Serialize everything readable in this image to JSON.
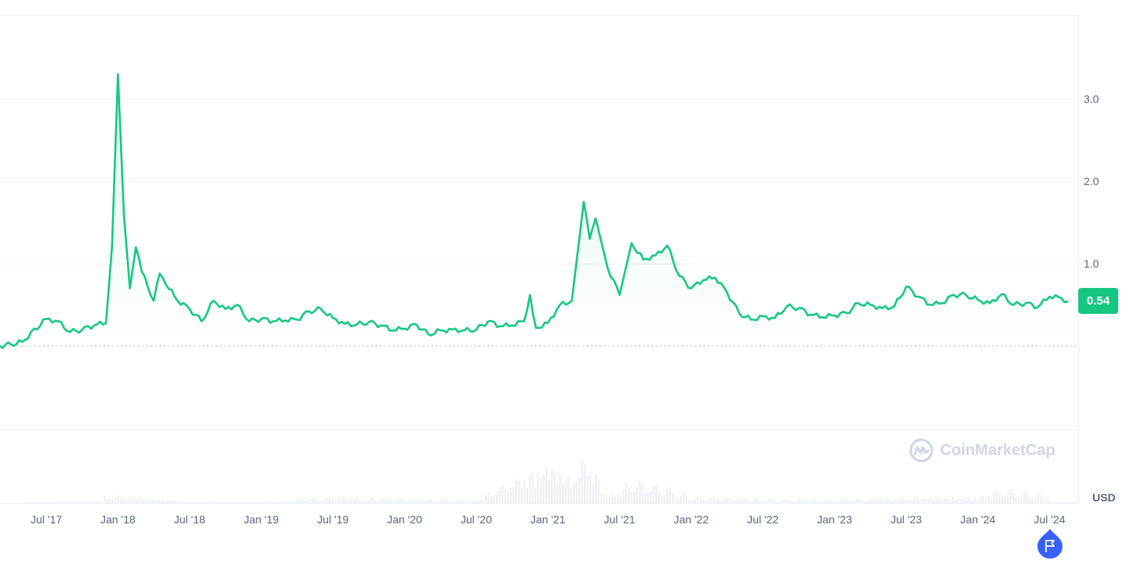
{
  "chart_data": {
    "type": "line",
    "title": "",
    "xlabel": "",
    "ylabel": "USD",
    "currency": "USD",
    "ylim": [
      0,
      4.2
    ],
    "y_ticks": [
      "1.0",
      "2.0",
      "3.0"
    ],
    "y_tick_values": [
      1.0,
      2.0,
      3.0
    ],
    "x_ticks": [
      "Jul '17",
      "Jan '18",
      "Jul '18",
      "Jan '19",
      "Jul '19",
      "Jan '20",
      "Jul '20",
      "Jan '21",
      "Jul '21",
      "Jan '22",
      "Jul '22",
      "Jan '23",
      "Jul '23",
      "Jan '24",
      "Jul '24"
    ],
    "current_price_label": "0.54",
    "baseline_value": 0.0,
    "grid": true,
    "legend": "none",
    "series": [
      {
        "name": "Price",
        "color": "#16c784",
        "points": [
          [
            "Apr '17",
            0.0
          ],
          [
            "May '17",
            0.02
          ],
          [
            "Jun '17",
            0.05
          ],
          [
            "Jul '17",
            0.33
          ],
          [
            "Aug '17",
            0.3
          ],
          [
            "Sep '17",
            0.17
          ],
          [
            "Oct '17",
            0.2
          ],
          [
            "Nov '17",
            0.25
          ],
          [
            "Dec '17",
            0.28
          ],
          [
            "Dec '17 late",
            1.2
          ],
          [
            "Jan '18",
            3.3
          ],
          [
            "Jan '18 late",
            1.6
          ],
          [
            "Feb '18",
            0.7
          ],
          [
            "Feb '18 late",
            1.2
          ],
          [
            "Mar '18",
            0.9
          ],
          [
            "Apr '18",
            0.55
          ],
          [
            "Apr '18 late",
            0.88
          ],
          [
            "May '18",
            0.75
          ],
          [
            "Jun '18",
            0.55
          ],
          [
            "Jul '18",
            0.45
          ],
          [
            "Aug '18",
            0.3
          ],
          [
            "Sep '18",
            0.55
          ],
          [
            "Oct '18",
            0.45
          ],
          [
            "Nov '18",
            0.5
          ],
          [
            "Dec '18",
            0.3
          ],
          [
            "Jan '19",
            0.33
          ],
          [
            "Feb '19",
            0.3
          ],
          [
            "Mar '19",
            0.31
          ],
          [
            "Apr '19",
            0.32
          ],
          [
            "May '19",
            0.42
          ],
          [
            "Jun '19",
            0.45
          ],
          [
            "Jul '19",
            0.34
          ],
          [
            "Aug '19",
            0.27
          ],
          [
            "Sep '19",
            0.26
          ],
          [
            "Oct '19",
            0.29
          ],
          [
            "Nov '19",
            0.25
          ],
          [
            "Dec '19",
            0.19
          ],
          [
            "Jan '20",
            0.21
          ],
          [
            "Feb '20",
            0.26
          ],
          [
            "Mar '20",
            0.14
          ],
          [
            "Apr '20",
            0.19
          ],
          [
            "May '20",
            0.2
          ],
          [
            "Jun '20",
            0.19
          ],
          [
            "Jul '20",
            0.2
          ],
          [
            "Aug '20",
            0.3
          ],
          [
            "Sep '20",
            0.24
          ],
          [
            "Oct '20",
            0.25
          ],
          [
            "Nov '20",
            0.3
          ],
          [
            "Nov '20 late",
            0.62
          ],
          [
            "Dec '20",
            0.22
          ],
          [
            "Jan '21",
            0.28
          ],
          [
            "Feb '21",
            0.5
          ],
          [
            "Mar '21",
            0.55
          ],
          [
            "Apr '21",
            1.75
          ],
          [
            "Apr '21 late",
            1.3
          ],
          [
            "May '21",
            1.55
          ],
          [
            "Jun '21",
            0.95
          ],
          [
            "Jul '21",
            0.62
          ],
          [
            "Aug '21",
            1.25
          ],
          [
            "Sep '21",
            1.05
          ],
          [
            "Oct '21",
            1.1
          ],
          [
            "Nov '21",
            1.22
          ],
          [
            "Dec '21",
            0.85
          ],
          [
            "Jan '22",
            0.7
          ],
          [
            "Feb '22",
            0.8
          ],
          [
            "Mar '22",
            0.83
          ],
          [
            "Apr '22",
            0.65
          ],
          [
            "May '22",
            0.4
          ],
          [
            "Jun '22",
            0.32
          ],
          [
            "Jul '22",
            0.36
          ],
          [
            "Aug '22",
            0.34
          ],
          [
            "Sep '22",
            0.48
          ],
          [
            "Oct '22",
            0.46
          ],
          [
            "Nov '22",
            0.38
          ],
          [
            "Dec '22",
            0.35
          ],
          [
            "Jan '23",
            0.37
          ],
          [
            "Feb '23",
            0.4
          ],
          [
            "Mar '23",
            0.52
          ],
          [
            "Apr '23",
            0.5
          ],
          [
            "May '23",
            0.46
          ],
          [
            "Jun '23",
            0.48
          ],
          [
            "Jul '23",
            0.72
          ],
          [
            "Aug '23",
            0.6
          ],
          [
            "Sep '23",
            0.5
          ],
          [
            "Oct '23",
            0.52
          ],
          [
            "Nov '23",
            0.62
          ],
          [
            "Dec '23",
            0.62
          ],
          [
            "Jan '24",
            0.56
          ],
          [
            "Feb '24",
            0.52
          ],
          [
            "Mar '24",
            0.63
          ],
          [
            "Apr '24",
            0.5
          ],
          [
            "May '24",
            0.52
          ],
          [
            "Jun '24",
            0.47
          ],
          [
            "Jul '24",
            0.6
          ],
          [
            "Aug '24",
            0.58
          ],
          [
            "Aug '24 late",
            0.54
          ]
        ]
      },
      {
        "name": "Volume",
        "color": "#eff2f5",
        "relative_heights_note": "volume bars, relative scale 0-1",
        "points": [
          [
            "Jul '17",
            0.02
          ],
          [
            "Jan '18",
            0.14
          ],
          [
            "Jul '18",
            0.03
          ],
          [
            "Jan '19",
            0.02
          ],
          [
            "Jul '19",
            0.1
          ],
          [
            "Jan '20",
            0.06
          ],
          [
            "Jul '20",
            0.06
          ],
          [
            "Nov '20",
            0.55
          ],
          [
            "Jan '21",
            0.8
          ],
          [
            "Mar '21",
            0.45
          ],
          [
            "Apr '21",
            0.93
          ],
          [
            "May '21",
            0.5
          ],
          [
            "Jun '21",
            0.12
          ],
          [
            "Aug '21",
            0.4
          ],
          [
            "Nov '21",
            0.25
          ],
          [
            "Jan '22",
            0.1
          ],
          [
            "Jul '22",
            0.06
          ],
          [
            "Jan '23",
            0.06
          ],
          [
            "Jul '23",
            0.1
          ],
          [
            "Jan '24",
            0.12
          ],
          [
            "Mar '24",
            0.25
          ],
          [
            "Jul '24",
            0.1
          ]
        ]
      }
    ]
  },
  "axis": {
    "currency_label": "USD"
  },
  "price_tag": {
    "value": "0.54",
    "color": "#16c784"
  },
  "watermark": {
    "text": "CoinMarketCap"
  },
  "marker": {
    "icon": "flag-icon",
    "color": "#3861fb"
  },
  "colors": {
    "line": "#16c784",
    "grid": "#eff2f5",
    "axis_text": "#58667e",
    "volume": "#eef1f5",
    "baseline_dots": "#a6b0c3"
  }
}
